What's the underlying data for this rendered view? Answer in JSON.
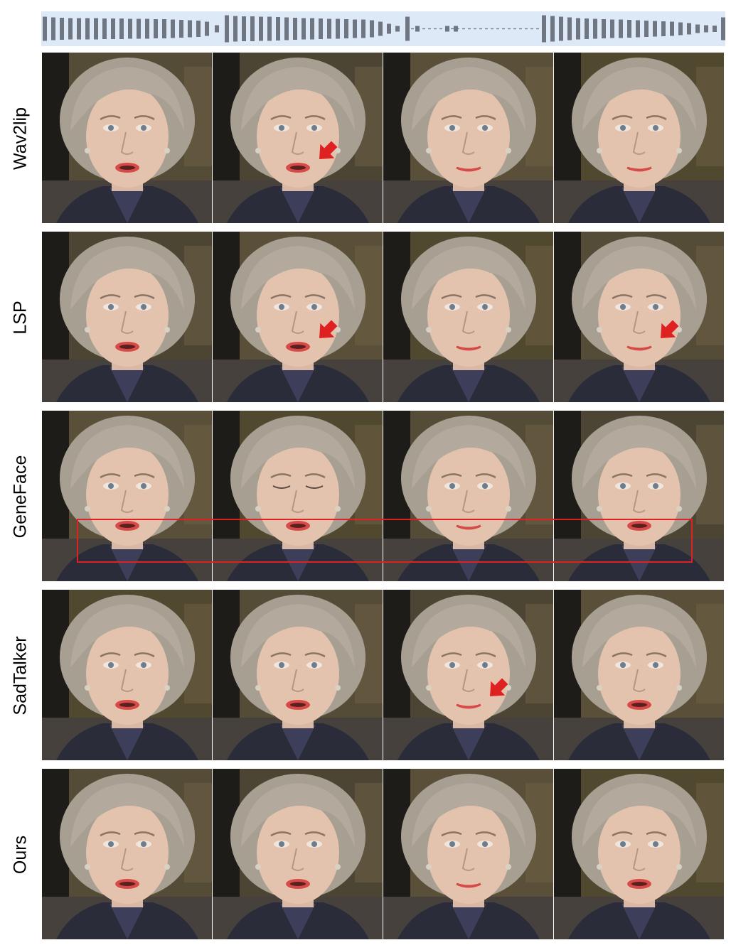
{
  "audio": {
    "description_icon": "audio-waveform-icon"
  },
  "rows": [
    {
      "label": "Wav2lip",
      "frames": [
        {
          "mouth": "open"
        },
        {
          "mouth": "open",
          "arrow": true
        },
        {
          "mouth": "closed"
        },
        {
          "mouth": "closed"
        }
      ]
    },
    {
      "label": "LSP",
      "frames": [
        {
          "mouth": "open"
        },
        {
          "mouth": "open",
          "arrow": true
        },
        {
          "mouth": "closed"
        },
        {
          "mouth": "closed",
          "arrow": true
        }
      ]
    },
    {
      "label": "GeneFace",
      "frames": [
        {
          "mouth": "open"
        },
        {
          "mouth": "open",
          "eyes": "closed"
        },
        {
          "mouth": "closed"
        },
        {
          "mouth": "open"
        }
      ]
    },
    {
      "label": "SadTalker",
      "frames": [
        {
          "mouth": "open"
        },
        {
          "mouth": "open"
        },
        {
          "mouth": "closed",
          "arrow": true
        },
        {
          "mouth": "open"
        }
      ]
    },
    {
      "label": "Ours",
      "frames": [
        {
          "mouth": "open"
        },
        {
          "mouth": "open"
        },
        {
          "mouth": "closed"
        },
        {
          "mouth": "open"
        }
      ]
    }
  ],
  "colors": {
    "audio_bg": "#dde9f7",
    "waveform": "#6f7682",
    "arrow": "#e02121",
    "highlight": "#e02121"
  }
}
